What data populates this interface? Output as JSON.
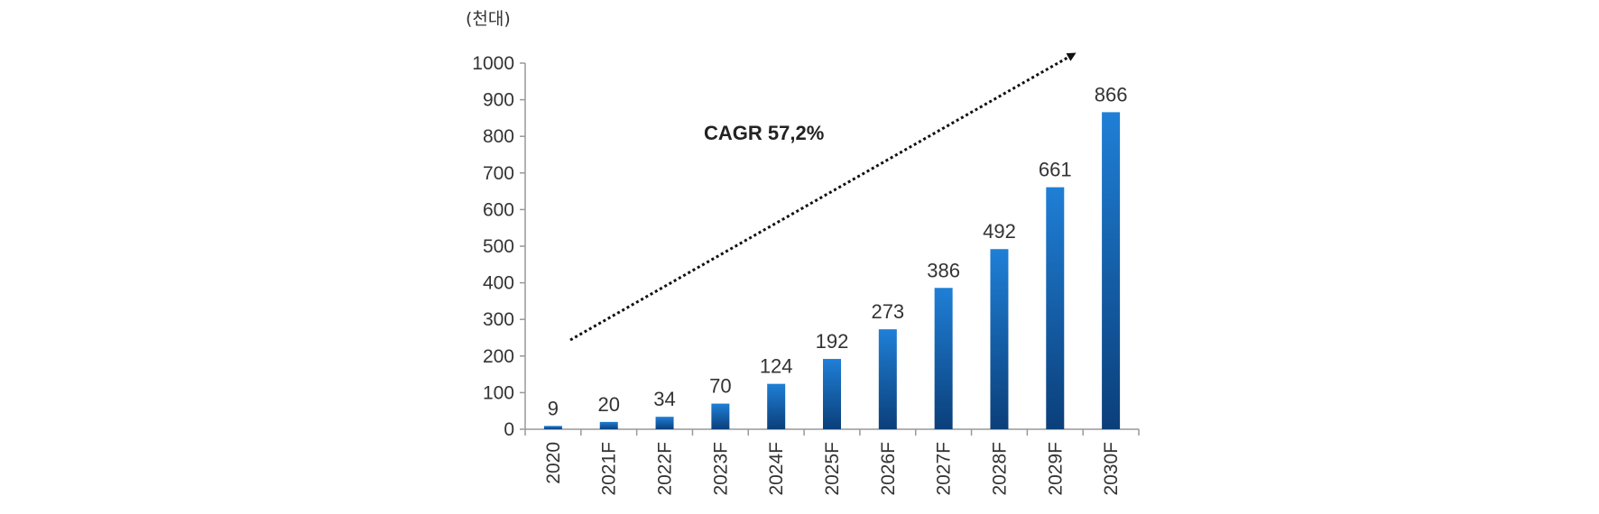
{
  "chart_data": {
    "type": "bar",
    "title": "",
    "unit_label": "(천대)",
    "xlabel": "",
    "ylabel": "",
    "categories": [
      "2020",
      "2021F",
      "2022F",
      "2023F",
      "2024F",
      "2025F",
      "2026F",
      "2027F",
      "2028F",
      "2029F",
      "2030F"
    ],
    "values": [
      9,
      20,
      34,
      70,
      124,
      192,
      273,
      386,
      492,
      661,
      866
    ],
    "data_labels": [
      "9",
      "20",
      "34",
      "70",
      "124",
      "192",
      "273",
      "386",
      "492",
      "661",
      "866"
    ],
    "ylim": [
      0,
      1000
    ],
    "yticks": [
      0,
      100,
      200,
      300,
      400,
      500,
      600,
      700,
      800,
      900,
      1000
    ],
    "ytick_labels": [
      "0",
      "100",
      "200",
      "300",
      "400",
      "500",
      "600",
      "700",
      "800",
      "900",
      "1000"
    ],
    "annotation": "CAGR 57,2%",
    "grid": false,
    "legend": "none",
    "colors": {
      "bar_top": "#1f7fd6",
      "bar_bottom": "#0b3f7a",
      "axis": "#999999",
      "arrow": "#111111",
      "text": "#333333"
    }
  }
}
